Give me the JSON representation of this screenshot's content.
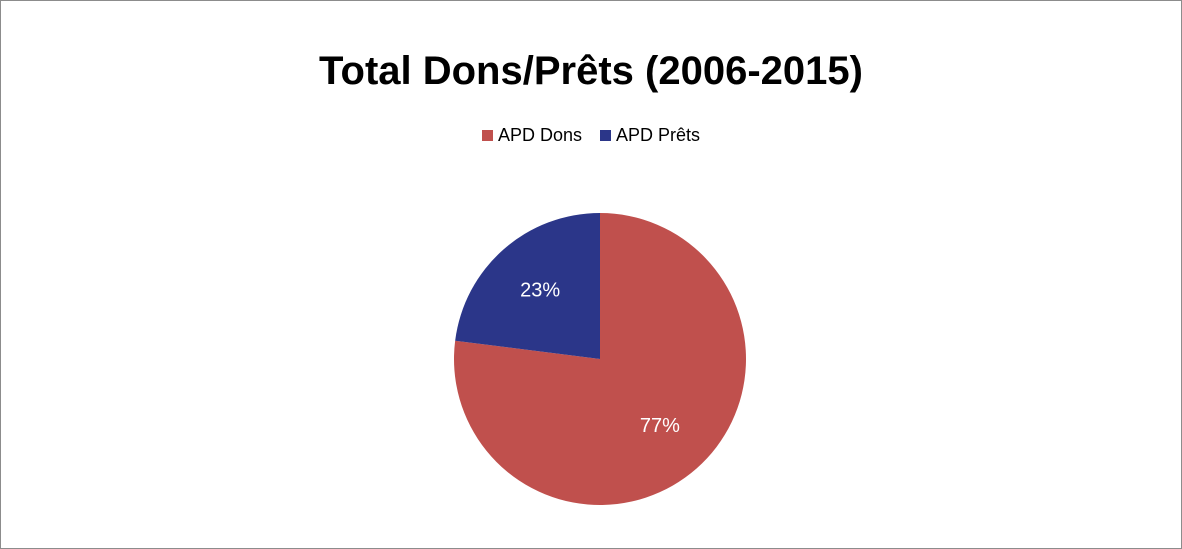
{
  "chart_data": {
    "type": "pie",
    "title": "Total Dons/Prêts (2006-2015)",
    "legend_position": "top",
    "slices": [
      {
        "name": "APD Dons",
        "value": 77,
        "label": "77%",
        "color": "#C0504D"
      },
      {
        "name": "APD Prêts",
        "value": 23,
        "label": "23%",
        "color": "#2B3689"
      }
    ],
    "start": "12 o'clock",
    "direction": "clockwise"
  }
}
